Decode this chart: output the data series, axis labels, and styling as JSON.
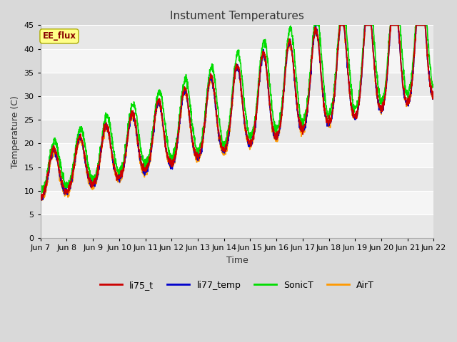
{
  "title": "Instument Temperatures",
  "xlabel": "Time",
  "ylabel": "Temperature (C)",
  "annotation": "EE_flux",
  "ylim": [
    0,
    45
  ],
  "yticks": [
    0,
    5,
    10,
    15,
    20,
    25,
    30,
    35,
    40,
    45
  ],
  "xtick_labels": [
    "Jun 7",
    "Jun 8",
    "Jun 9",
    "Jun 10",
    "Jun 11",
    "Jun 12",
    "Jun 13",
    "Jun 14",
    "Jun 15",
    "Jun 16",
    "Jun 17",
    "Jun 18",
    "Jun 19",
    "Jun 20",
    "Jun 21",
    "Jun 22"
  ],
  "series": {
    "li75_t": {
      "color": "#cc0000",
      "lw": 1.2
    },
    "li77_temp": {
      "color": "#0000cc",
      "lw": 1.2
    },
    "SonicT": {
      "color": "#00dd00",
      "lw": 1.2
    },
    "AirT": {
      "color": "#ff9900",
      "lw": 1.2
    }
  },
  "bg_outer": "#d9d9d9",
  "plot_bg_light": "#f5f5f5",
  "plot_bg_dark": "#e8e8e8",
  "title_fontsize": 11,
  "axis_fontsize": 9,
  "tick_fontsize": 8
}
